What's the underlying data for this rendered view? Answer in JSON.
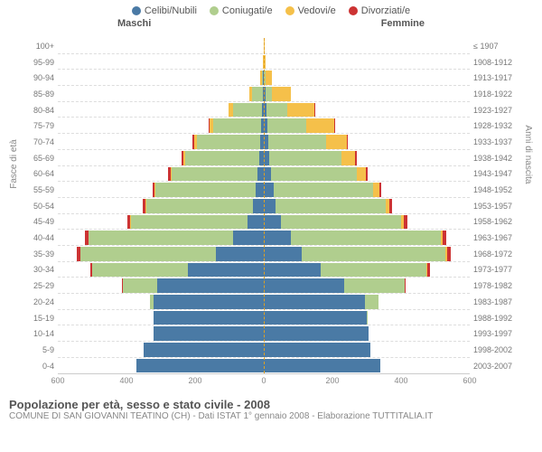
{
  "legend": [
    {
      "label": "Celibi/Nubili",
      "color": "#4a7aa5"
    },
    {
      "label": "Coniugati/e",
      "color": "#b0ce8e"
    },
    {
      "label": "Vedovi/e",
      "color": "#f5c04a"
    },
    {
      "label": "Divorziati/e",
      "color": "#cc3333"
    }
  ],
  "headers": {
    "male": "Maschi",
    "female": "Femmine"
  },
  "axis_labels": {
    "left": "Fasce di età",
    "right": "Anni di nascita"
  },
  "x_ticks": [
    600,
    400,
    200,
    0,
    200,
    400,
    600
  ],
  "x_max": 600,
  "title": "Popolazione per età, sesso e stato civile - 2008",
  "subtitle": "COMUNE DI SAN GIOVANNI TEATINO (CH) - Dati ISTAT 1° gennaio 2008 - Elaborazione TUTTITALIA.IT",
  "colors": {
    "single": "#4a7aa5",
    "married": "#b0ce8e",
    "widowed": "#f5c04a",
    "divorced": "#cc3333",
    "grid": "#dddddd",
    "text": "#777777",
    "bg": "#ffffff"
  },
  "rows": [
    {
      "age": "100+",
      "year": "≤ 1907",
      "m": [
        0,
        0,
        0,
        0
      ],
      "f": [
        0,
        0,
        2,
        0
      ]
    },
    {
      "age": "95-99",
      "year": "1908-1912",
      "m": [
        0,
        0,
        2,
        0
      ],
      "f": [
        0,
        0,
        5,
        0
      ]
    },
    {
      "age": "90-94",
      "year": "1913-1917",
      "m": [
        2,
        4,
        4,
        0
      ],
      "f": [
        1,
        3,
        20,
        0
      ]
    },
    {
      "age": "85-89",
      "year": "1918-1922",
      "m": [
        3,
        30,
        8,
        0
      ],
      "f": [
        5,
        18,
        55,
        0
      ]
    },
    {
      "age": "80-84",
      "year": "1923-1927",
      "m": [
        5,
        85,
        12,
        2
      ],
      "f": [
        8,
        60,
        80,
        2
      ]
    },
    {
      "age": "75-79",
      "year": "1928-1932",
      "m": [
        8,
        140,
        10,
        3
      ],
      "f": [
        10,
        115,
        80,
        3
      ]
    },
    {
      "age": "70-74",
      "year": "1933-1937",
      "m": [
        10,
        185,
        8,
        4
      ],
      "f": [
        12,
        170,
        60,
        4
      ]
    },
    {
      "age": "65-69",
      "year": "1938-1942",
      "m": [
        14,
        215,
        6,
        5
      ],
      "f": [
        16,
        210,
        40,
        5
      ]
    },
    {
      "age": "60-64",
      "year": "1943-1947",
      "m": [
        18,
        250,
        4,
        6
      ],
      "f": [
        20,
        250,
        28,
        6
      ]
    },
    {
      "age": "55-59",
      "year": "1948-1952",
      "m": [
        25,
        290,
        3,
        7
      ],
      "f": [
        28,
        290,
        18,
        7
      ]
    },
    {
      "age": "50-54",
      "year": "1953-1957",
      "m": [
        32,
        310,
        2,
        8
      ],
      "f": [
        35,
        320,
        12,
        8
      ]
    },
    {
      "age": "45-49",
      "year": "1958-1962",
      "m": [
        48,
        340,
        1,
        9
      ],
      "f": [
        50,
        350,
        8,
        10
      ]
    },
    {
      "age": "40-44",
      "year": "1963-1967",
      "m": [
        90,
        420,
        1,
        10
      ],
      "f": [
        80,
        435,
        5,
        12
      ]
    },
    {
      "age": "35-39",
      "year": "1968-1972",
      "m": [
        140,
        395,
        0,
        10
      ],
      "f": [
        110,
        420,
        3,
        12
      ]
    },
    {
      "age": "30-34",
      "year": "1973-1977",
      "m": [
        220,
        280,
        0,
        6
      ],
      "f": [
        165,
        310,
        2,
        8
      ]
    },
    {
      "age": "25-29",
      "year": "1978-1982",
      "m": [
        310,
        100,
        0,
        2
      ],
      "f": [
        235,
        175,
        0,
        3
      ]
    },
    {
      "age": "20-24",
      "year": "1983-1987",
      "m": [
        320,
        12,
        0,
        0
      ],
      "f": [
        295,
        40,
        0,
        0
      ]
    },
    {
      "age": "15-19",
      "year": "1988-1992",
      "m": [
        320,
        0,
        0,
        0
      ],
      "f": [
        300,
        1,
        0,
        0
      ]
    },
    {
      "age": "10-14",
      "year": "1993-1997",
      "m": [
        320,
        0,
        0,
        0
      ],
      "f": [
        305,
        0,
        0,
        0
      ]
    },
    {
      "age": "5-9",
      "year": "1998-2002",
      "m": [
        350,
        0,
        0,
        0
      ],
      "f": [
        310,
        0,
        0,
        0
      ]
    },
    {
      "age": "0-4",
      "year": "2003-2007",
      "m": [
        370,
        0,
        0,
        0
      ],
      "f": [
        340,
        0,
        0,
        0
      ]
    }
  ]
}
